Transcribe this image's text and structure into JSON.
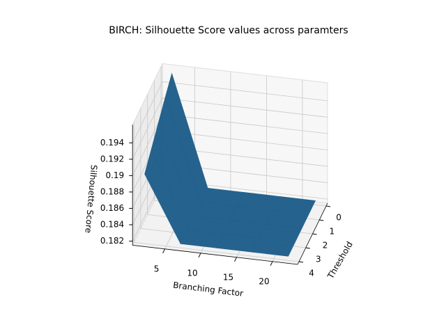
{
  "chart_data": {
    "type": "surface",
    "title": "BIRCH: Silhouette Score values across paramters",
    "xlabel": "Branching Factor",
    "ylabel": "Threshold",
    "zlabel": "Silhouette Score",
    "x": [
      2,
      7,
      12,
      17,
      22
    ],
    "y": [
      0,
      1,
      2,
      3,
      4
    ],
    "z": [
      [
        0.1955,
        0.182,
        0.182,
        0.182,
        0.182
      ],
      [
        0.1942,
        0.182,
        0.182,
        0.182,
        0.182
      ],
      [
        0.1928,
        0.182,
        0.182,
        0.182,
        0.182
      ],
      [
        0.1914,
        0.182,
        0.182,
        0.182,
        0.182
      ],
      [
        0.19,
        0.182,
        0.182,
        0.182,
        0.182
      ]
    ],
    "xlim": [
      0.5,
      23.5
    ],
    "ylim": [
      -0.2,
      4.2
    ],
    "zlim": [
      0.1815,
      0.1962
    ],
    "xticks": [
      5,
      10,
      15,
      20
    ],
    "yticks": [
      0,
      1,
      2,
      3,
      4
    ],
    "zticks": [
      0.182,
      0.184,
      0.186,
      0.188,
      0.19,
      0.192,
      0.194
    ],
    "color": "#1f5f8b",
    "grid": true
  }
}
